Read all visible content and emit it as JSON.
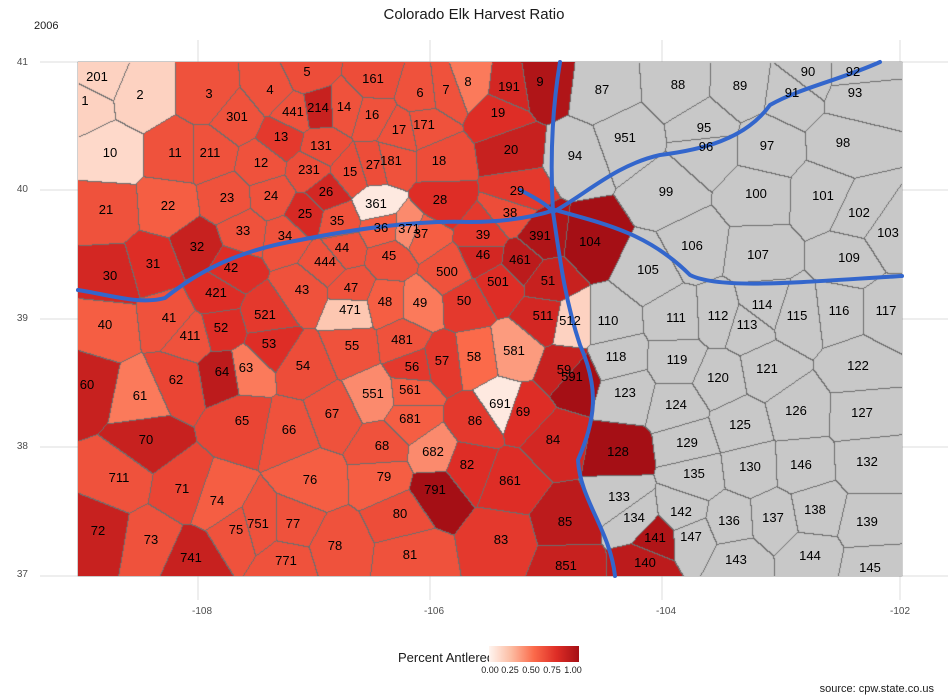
{
  "title": "Colorado Elk Harvest Ratio",
  "year": "2006",
  "y_ticks": [
    "41",
    "40",
    "39",
    "38",
    "37"
  ],
  "x_ticks": [
    "-108",
    "-106",
    "-104",
    "-102"
  ],
  "legend": {
    "title": "Percent Antlered",
    "ticks": [
      "0.00",
      "0.25",
      "0.50",
      "0.75",
      "1.00"
    ],
    "colors": [
      "#fff5f0",
      "#fcbba1",
      "#fb6a4a",
      "#de2d26",
      "#a50f15"
    ]
  },
  "source": "source: cpw.state.co.us",
  "no_data_color": "#c8c8c8",
  "highway_color": "#3366cc",
  "units": [
    {
      "id": "201",
      "v": 0.15
    },
    {
      "id": "1",
      "v": 0.15
    },
    {
      "id": "2",
      "v": 0.15
    },
    {
      "id": "10",
      "v": 0.12
    },
    {
      "id": "3",
      "v": 0.6
    },
    {
      "id": "4",
      "v": 0.6
    },
    {
      "id": "5",
      "v": 0.62
    },
    {
      "id": "161",
      "v": 0.62
    },
    {
      "id": "6",
      "v": 0.6
    },
    {
      "id": "7",
      "v": 0.6
    },
    {
      "id": "8",
      "v": 0.45
    },
    {
      "id": "191",
      "v": 0.8
    },
    {
      "id": "9",
      "v": 0.95
    },
    {
      "id": "301",
      "v": 0.6
    },
    {
      "id": "441",
      "v": 0.6
    },
    {
      "id": "214",
      "v": 0.85
    },
    {
      "id": "14",
      "v": 0.6
    },
    {
      "id": "16",
      "v": 0.6
    },
    {
      "id": "17",
      "v": 0.6
    },
    {
      "id": "171",
      "v": 0.6
    },
    {
      "id": "19",
      "v": 0.75
    },
    {
      "id": "11",
      "v": 0.6
    },
    {
      "id": "211",
      "v": 0.6
    },
    {
      "id": "13",
      "v": 0.7
    },
    {
      "id": "131",
      "v": 0.62
    },
    {
      "id": "12",
      "v": 0.6
    },
    {
      "id": "231",
      "v": 0.62
    },
    {
      "id": "15",
      "v": 0.62
    },
    {
      "id": "27",
      "v": 0.62
    },
    {
      "id": "181",
      "v": 0.6
    },
    {
      "id": "18",
      "v": 0.62
    },
    {
      "id": "20",
      "v": 0.85
    },
    {
      "id": "21",
      "v": 0.6
    },
    {
      "id": "22",
      "v": 0.55
    },
    {
      "id": "23",
      "v": 0.6
    },
    {
      "id": "24",
      "v": 0.6
    },
    {
      "id": "26",
      "v": 0.8
    },
    {
      "id": "25",
      "v": 0.78
    },
    {
      "id": "361",
      "v": 0.05
    },
    {
      "id": "28",
      "v": 0.75
    },
    {
      "id": "29",
      "v": 0.7
    },
    {
      "id": "35",
      "v": 0.6
    },
    {
      "id": "36",
      "v": 0.55
    },
    {
      "id": "371",
      "v": 0.4
    },
    {
      "id": "37",
      "v": 0.55
    },
    {
      "id": "38",
      "v": 0.62
    },
    {
      "id": "39",
      "v": 0.7
    },
    {
      "id": "391",
      "v": 0.95
    },
    {
      "id": "33",
      "v": 0.6
    },
    {
      "id": "34",
      "v": 0.6
    },
    {
      "id": "32",
      "v": 0.85
    },
    {
      "id": "44",
      "v": 0.6
    },
    {
      "id": "444",
      "v": 0.6
    },
    {
      "id": "45",
      "v": 0.6
    },
    {
      "id": "46",
      "v": 0.8
    },
    {
      "id": "461",
      "v": 0.9
    },
    {
      "id": "104",
      "v": 1.0
    },
    {
      "id": "30",
      "v": 0.8
    },
    {
      "id": "31",
      "v": 0.75
    },
    {
      "id": "42",
      "v": 0.75
    },
    {
      "id": "500",
      "v": 0.6
    },
    {
      "id": "501",
      "v": 0.75
    },
    {
      "id": "51",
      "v": 0.85
    },
    {
      "id": "421",
      "v": 0.75
    },
    {
      "id": "43",
      "v": 0.6
    },
    {
      "id": "47",
      "v": 0.6
    },
    {
      "id": "48",
      "v": 0.55
    },
    {
      "id": "49",
      "v": 0.45
    },
    {
      "id": "50",
      "v": 0.7
    },
    {
      "id": "40",
      "v": 0.55
    },
    {
      "id": "41",
      "v": 0.6
    },
    {
      "id": "521",
      "v": 0.7
    },
    {
      "id": "471",
      "v": 0.2
    },
    {
      "id": "511",
      "v": 0.8
    },
    {
      "id": "512",
      "v": 0.15
    },
    {
      "id": "411",
      "v": 0.6
    },
    {
      "id": "52",
      "v": 0.75
    },
    {
      "id": "53",
      "v": 0.75
    },
    {
      "id": "55",
      "v": 0.6
    },
    {
      "id": "481",
      "v": 0.6
    },
    {
      "id": "58",
      "v": 0.5
    },
    {
      "id": "581",
      "v": 0.35
    },
    {
      "id": "60",
      "v": 0.85
    },
    {
      "id": "62",
      "v": 0.65
    },
    {
      "id": "64",
      "v": 0.9
    },
    {
      "id": "63",
      "v": 0.45
    },
    {
      "id": "54",
      "v": 0.62
    },
    {
      "id": "56",
      "v": 0.7
    },
    {
      "id": "57",
      "v": 0.7
    },
    {
      "id": "59",
      "v": 0.85
    },
    {
      "id": "591",
      "v": 1.0
    },
    {
      "id": "61",
      "v": 0.45
    },
    {
      "id": "551",
      "v": 0.4
    },
    {
      "id": "561",
      "v": 0.55
    },
    {
      "id": "691",
      "v": 0.05
    },
    {
      "id": "69",
      "v": 0.75
    },
    {
      "id": "65",
      "v": 0.65
    },
    {
      "id": "66",
      "v": 0.6
    },
    {
      "id": "67",
      "v": 0.6
    },
    {
      "id": "681",
      "v": 0.55
    },
    {
      "id": "86",
      "v": 0.7
    },
    {
      "id": "70",
      "v": 0.85
    },
    {
      "id": "68",
      "v": 0.6
    },
    {
      "id": "682",
      "v": 0.4
    },
    {
      "id": "84",
      "v": 0.8
    },
    {
      "id": "128",
      "v": 1.0
    },
    {
      "id": "711",
      "v": 0.6
    },
    {
      "id": "76",
      "v": 0.55
    },
    {
      "id": "79",
      "v": 0.55
    },
    {
      "id": "791",
      "v": 1.0
    },
    {
      "id": "82",
      "v": 0.75
    },
    {
      "id": "861",
      "v": 0.75
    },
    {
      "id": "71",
      "v": 0.65
    },
    {
      "id": "74",
      "v": 0.55
    },
    {
      "id": "72",
      "v": 0.85
    },
    {
      "id": "80",
      "v": 0.62
    },
    {
      "id": "75",
      "v": 0.6
    },
    {
      "id": "751",
      "v": 0.6
    },
    {
      "id": "77",
      "v": 0.6
    },
    {
      "id": "85",
      "v": 0.9
    },
    {
      "id": "141",
      "v": 0.95
    },
    {
      "id": "73",
      "v": 0.6
    },
    {
      "id": "78",
      "v": 0.6
    },
    {
      "id": "81",
      "v": 0.6
    },
    {
      "id": "83",
      "v": 0.7
    },
    {
      "id": "741",
      "v": 0.85
    },
    {
      "id": "771",
      "v": 0.6
    },
    {
      "id": "851",
      "v": 0.85
    },
    {
      "id": "140",
      "v": 0.9
    },
    {
      "id": "87",
      "v": null
    },
    {
      "id": "88",
      "v": null
    },
    {
      "id": "89",
      "v": null
    },
    {
      "id": "90",
      "v": null
    },
    {
      "id": "91",
      "v": null
    },
    {
      "id": "92",
      "v": null
    },
    {
      "id": "93",
      "v": null
    },
    {
      "id": "951",
      "v": null
    },
    {
      "id": "95",
      "v": null
    },
    {
      "id": "96",
      "v": null
    },
    {
      "id": "97",
      "v": null
    },
    {
      "id": "98",
      "v": null
    },
    {
      "id": "94",
      "v": null
    },
    {
      "id": "99",
      "v": null
    },
    {
      "id": "100",
      "v": null
    },
    {
      "id": "101",
      "v": null
    },
    {
      "id": "102",
      "v": null
    },
    {
      "id": "103",
      "v": null
    },
    {
      "id": "106",
      "v": null
    },
    {
      "id": "107",
      "v": null
    },
    {
      "id": "109",
      "v": null
    },
    {
      "id": "105",
      "v": null
    },
    {
      "id": "114",
      "v": null
    },
    {
      "id": "116",
      "v": null
    },
    {
      "id": "117",
      "v": null
    },
    {
      "id": "110",
      "v": null
    },
    {
      "id": "111",
      "v": null
    },
    {
      "id": "112",
      "v": null
    },
    {
      "id": "113",
      "v": null
    },
    {
      "id": "115",
      "v": null
    },
    {
      "id": "118",
      "v": null
    },
    {
      "id": "119",
      "v": null
    },
    {
      "id": "121",
      "v": null
    },
    {
      "id": "122",
      "v": null
    },
    {
      "id": "120",
      "v": null
    },
    {
      "id": "123",
      "v": null
    },
    {
      "id": "124",
      "v": null
    },
    {
      "id": "126",
      "v": null
    },
    {
      "id": "127",
      "v": null
    },
    {
      "id": "125",
      "v": null
    },
    {
      "id": "129",
      "v": null
    },
    {
      "id": "135",
      "v": null
    },
    {
      "id": "130",
      "v": null
    },
    {
      "id": "146",
      "v": null
    },
    {
      "id": "132",
      "v": null
    },
    {
      "id": "133",
      "v": null
    },
    {
      "id": "138",
      "v": null
    },
    {
      "id": "134",
      "v": null
    },
    {
      "id": "142",
      "v": null
    },
    {
      "id": "136",
      "v": null
    },
    {
      "id": "137",
      "v": null
    },
    {
      "id": "139",
      "v": null
    },
    {
      "id": "147",
      "v": null
    },
    {
      "id": "143",
      "v": null
    },
    {
      "id": "144",
      "v": null
    },
    {
      "id": "145",
      "v": null
    }
  ]
}
